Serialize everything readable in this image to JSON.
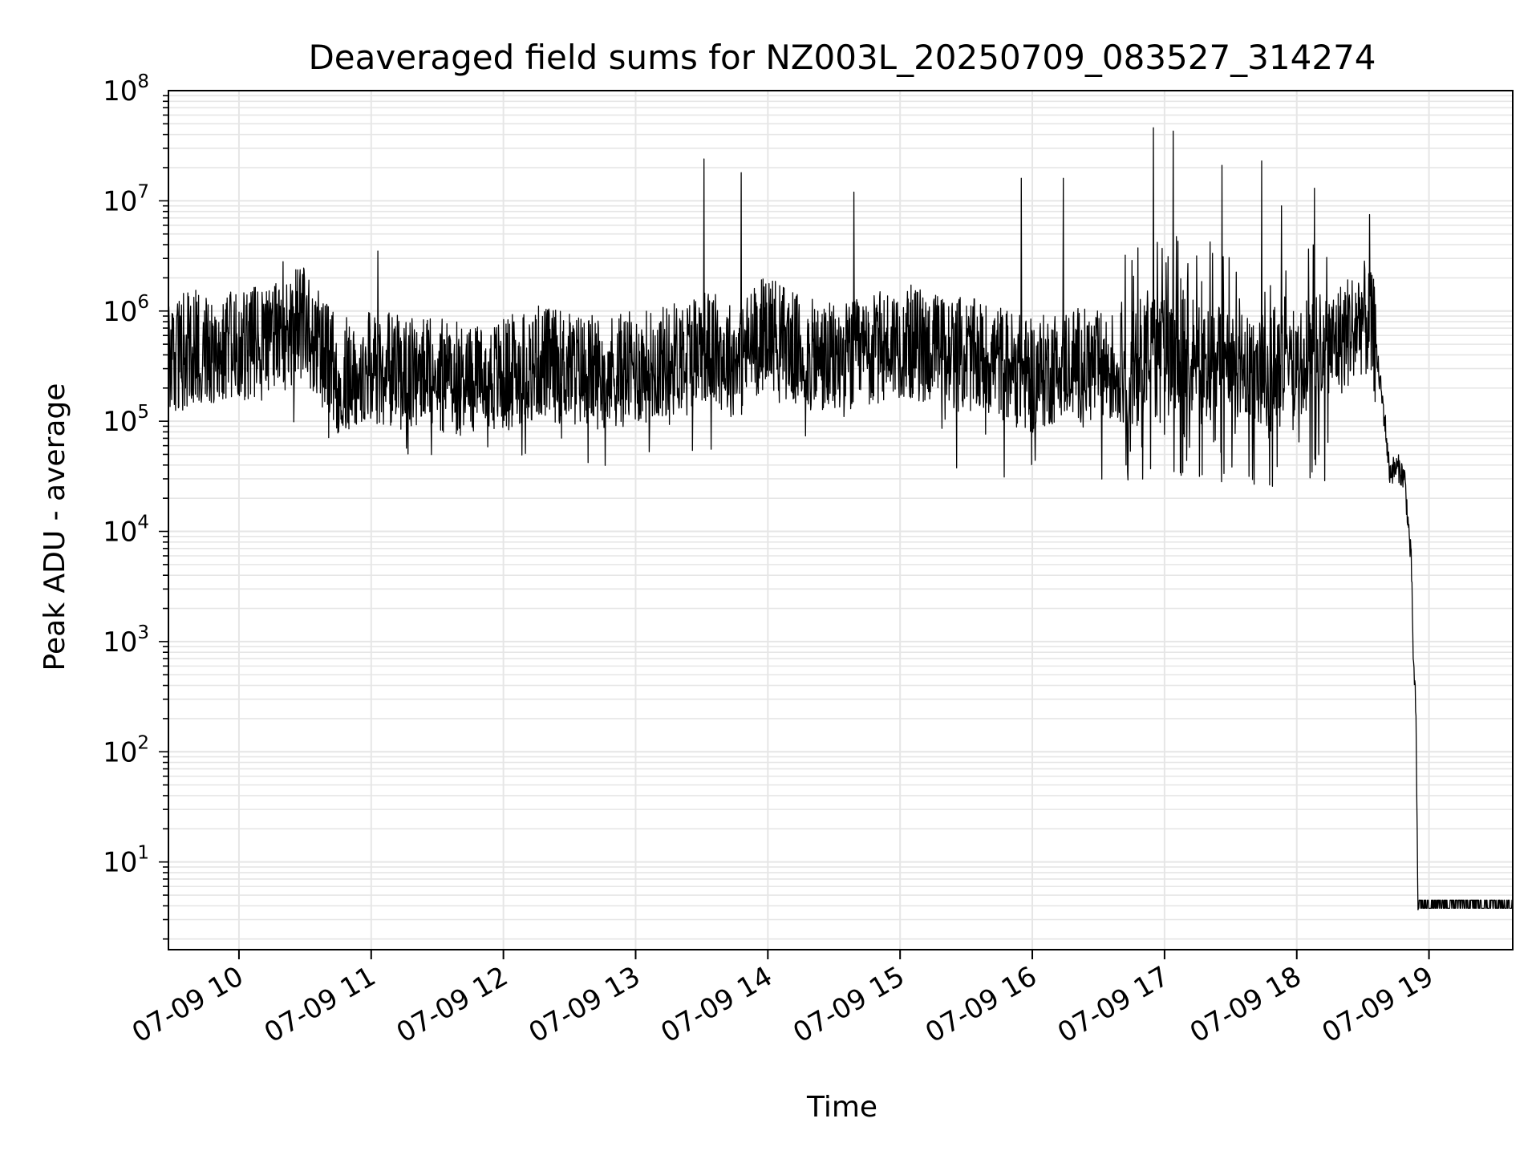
{
  "chart_data": {
    "type": "line",
    "title": "Deaveraged field sums for NZ003L_20250709_083527_314274",
    "xlabel": "Time",
    "ylabel": "Peak ADU - average",
    "yscale": "log",
    "grid": true,
    "xlim": [
      "07-09 09:28",
      "07-09 19:38"
    ],
    "ylim": [
      1.6,
      100000000
    ],
    "x_ticks": [
      "07-09 10",
      "07-09 11",
      "07-09 12",
      "07-09 13",
      "07-09 14",
      "07-09 15",
      "07-09 16",
      "07-09 17",
      "07-09 18",
      "07-09 19"
    ],
    "y_ticks": [
      {
        "base": "10",
        "exp": "1"
      },
      {
        "base": "10",
        "exp": "2"
      },
      {
        "base": "10",
        "exp": "3"
      },
      {
        "base": "10",
        "exp": "4"
      },
      {
        "base": "10",
        "exp": "5"
      },
      {
        "base": "10",
        "exp": "6"
      },
      {
        "base": "10",
        "exp": "7"
      },
      {
        "base": "10",
        "exp": "8"
      }
    ],
    "series": [
      {
        "color": "#000000",
        "points": [
          [
            "07-09 09:28",
            400000
          ],
          [
            "07-09 09:45",
            500000
          ],
          [
            "07-09 10:00",
            450000
          ],
          [
            "07-09 10:15",
            550000
          ],
          [
            "07-09 10:30",
            800000
          ],
          [
            "07-09 10:45",
            250000
          ],
          [
            "07-09 11:00",
            300000
          ],
          [
            "07-09 11:15",
            280000
          ],
          [
            "07-09 11:30",
            260000
          ],
          [
            "07-09 11:45",
            240000
          ],
          [
            "07-09 12:00",
            260000
          ],
          [
            "07-09 12:15",
            350000
          ],
          [
            "07-09 12:30",
            300000
          ],
          [
            "07-09 12:45",
            280000
          ],
          [
            "07-09 13:00",
            300000
          ],
          [
            "07-09 13:15",
            350000
          ],
          [
            "07-09 13:30",
            500000
          ],
          [
            "07-09 13:45",
            350000
          ],
          [
            "07-09 14:00",
            700000
          ],
          [
            "07-09 14:15",
            400000
          ],
          [
            "07-09 14:30",
            350000
          ],
          [
            "07-09 14:45",
            400000
          ],
          [
            "07-09 15:00",
            550000
          ],
          [
            "07-09 15:15",
            450000
          ],
          [
            "07-09 15:30",
            400000
          ],
          [
            "07-09 15:45",
            350000
          ],
          [
            "07-09 16:00",
            250000
          ],
          [
            "07-09 16:15",
            350000
          ],
          [
            "07-09 16:30",
            300000
          ],
          [
            "07-09 16:45",
            300000
          ],
          [
            "07-09 17:00",
            450000
          ],
          [
            "07-09 17:15",
            400000
          ],
          [
            "07-09 17:30",
            350000
          ],
          [
            "07-09 17:45",
            300000
          ],
          [
            "07-09 18:00",
            350000
          ],
          [
            "07-09 18:15",
            450000
          ],
          [
            "07-09 18:30",
            900000
          ],
          [
            "07-09 18:35",
            600000
          ],
          [
            "07-09 18:40",
            100000
          ],
          [
            "07-09 18:42",
            35000
          ],
          [
            "07-09 18:46",
            38000
          ],
          [
            "07-09 18:49",
            30000
          ],
          [
            "07-09 18:52",
            5000
          ],
          [
            "07-09 18:53",
            600
          ],
          [
            "07-09 18:54",
            250
          ],
          [
            "07-09 18:55",
            3.8
          ],
          [
            "07-09 19:38",
            3.8
          ]
        ],
        "spikes": [
          [
            "07-09 10:20",
            2800000
          ],
          [
            "07-09 11:03",
            3500000
          ],
          [
            "07-09 13:31",
            24000000
          ],
          [
            "07-09 13:48",
            18000000
          ],
          [
            "07-09 14:39",
            12000000
          ],
          [
            "07-09 15:55",
            16000000
          ],
          [
            "07-09 16:14",
            16000000
          ],
          [
            "07-09 16:55",
            46000000
          ],
          [
            "07-09 17:04",
            43000000
          ],
          [
            "07-09 17:26",
            21000000
          ],
          [
            "07-09 17:44",
            23000000
          ],
          [
            "07-09 17:53",
            9000000
          ],
          [
            "07-09 18:08",
            13000000
          ],
          [
            "07-09 18:33",
            7500000
          ]
        ]
      }
    ]
  }
}
